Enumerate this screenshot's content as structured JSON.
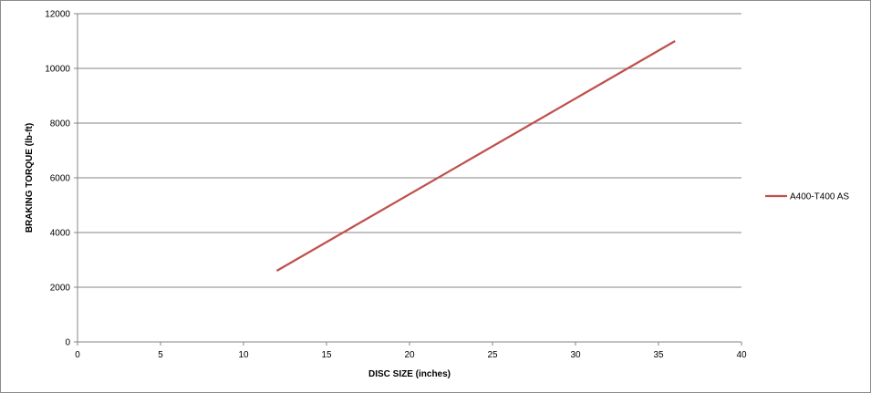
{
  "chart_data": {
    "type": "line",
    "title": "",
    "xlabel": "DISC SIZE (inches)",
    "ylabel": "BRAKING TORQUE (lb-ft)",
    "xlim": [
      0,
      40
    ],
    "ylim": [
      0,
      12000
    ],
    "xticks": [
      0,
      5,
      10,
      15,
      20,
      25,
      30,
      35,
      40
    ],
    "yticks": [
      0,
      2000,
      4000,
      6000,
      8000,
      10000,
      12000
    ],
    "grid": "horizontal",
    "legend_position": "right",
    "series": [
      {
        "name": "A400-T400 AS",
        "color": "#c0504d",
        "x": [
          12,
          36
        ],
        "y": [
          2600,
          11000
        ]
      }
    ]
  }
}
